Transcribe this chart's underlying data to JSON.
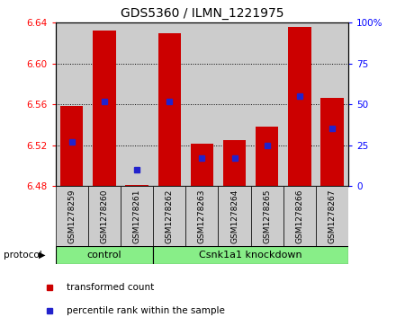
{
  "title": "GDS5360 / ILMN_1221975",
  "samples": [
    "GSM1278259",
    "GSM1278260",
    "GSM1278261",
    "GSM1278262",
    "GSM1278263",
    "GSM1278264",
    "GSM1278265",
    "GSM1278266",
    "GSM1278267"
  ],
  "transformed_count": [
    6.558,
    6.632,
    6.481,
    6.63,
    6.521,
    6.525,
    6.538,
    6.636,
    6.566
  ],
  "percentile_rank": [
    27,
    52,
    10,
    52,
    17,
    17,
    25,
    55,
    35
  ],
  "ylim": [
    6.48,
    6.64
  ],
  "yticks": [
    6.48,
    6.52,
    6.56,
    6.6,
    6.64
  ],
  "y2ticks": [
    0,
    25,
    50,
    75,
    100
  ],
  "bar_color": "#cc0000",
  "dot_color": "#2222cc",
  "base_value": 6.48,
  "n_control": 3,
  "n_knockdown": 6,
  "control_label": "control",
  "knockdown_label": "Csnk1a1 knockdown",
  "protocol_label": "protocol",
  "legend_bar": "transformed count",
  "legend_dot": "percentile rank within the sample",
  "group_color": "#88ee88",
  "col_bg_color": "#cccccc",
  "title_fontsize": 10
}
